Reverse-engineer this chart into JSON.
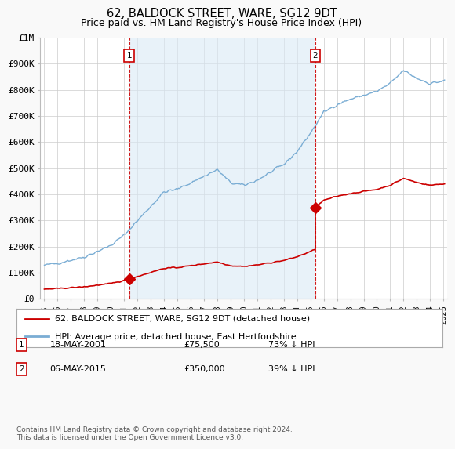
{
  "title": "62, BALDOCK STREET, WARE, SG12 9DT",
  "subtitle": "Price paid vs. HM Land Registry's House Price Index (HPI)",
  "title_fontsize": 10.5,
  "subtitle_fontsize": 9,
  "ylabel_ticks": [
    "£0",
    "£100K",
    "£200K",
    "£300K",
    "£400K",
    "£500K",
    "£600K",
    "£700K",
    "£800K",
    "£900K",
    "£1M"
  ],
  "ytick_values": [
    0,
    100000,
    200000,
    300000,
    400000,
    500000,
    600000,
    700000,
    800000,
    900000,
    1000000
  ],
  "ylim": [
    0,
    1000000
  ],
  "xlim_start": 1994.7,
  "xlim_end": 2025.3,
  "hpi_color": "#7aadd4",
  "hpi_fill_color": "#daeaf5",
  "sale_color": "#cc0000",
  "vline_color": "#cc0000",
  "marker_color": "#cc0000",
  "transaction1": {
    "year": 2001.38,
    "price": 75500,
    "label": "1",
    "date": "18-MAY-2001",
    "price_str": "£75,500",
    "pct": "73% ↓ HPI"
  },
  "transaction2": {
    "year": 2015.37,
    "price": 350000,
    "label": "2",
    "date": "06-MAY-2015",
    "price_str": "£350,000",
    "pct": "39% ↓ HPI"
  },
  "legend_label_red": "62, BALDOCK STREET, WARE, SG12 9DT (detached house)",
  "legend_label_blue": "HPI: Average price, detached house, East Hertfordshire",
  "footer": "Contains HM Land Registry data © Crown copyright and database right 2024.\nThis data is licensed under the Open Government Licence v3.0.",
  "background_color": "#f9f9f9",
  "plot_bg_color": "#ffffff",
  "grid_color": "#cccccc"
}
